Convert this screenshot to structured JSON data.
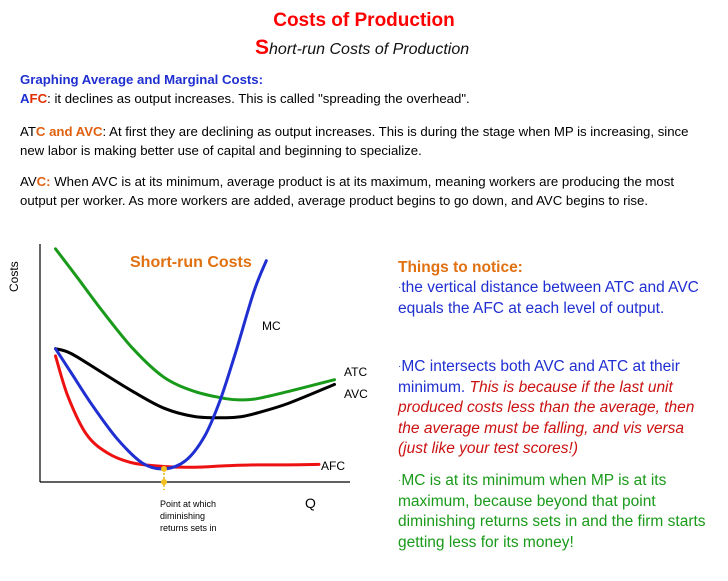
{
  "header": {
    "title": "Costs of Production",
    "subtitle_initial": "S",
    "subtitle_rest": "hort-run Costs of Production"
  },
  "intro": {
    "heading": "Graphing Average and Marginal Costs:",
    "afc_prefix_a": "A",
    "afc_prefix_fc": "FC",
    "afc_text": ": it declines as output increases. This is called \"spreading the overhead\".",
    "atc_avc_prefix_at": "AT",
    "atc_avc_prefix_rest": "C and AVC",
    "atc_avc_text": ": At first they are declining as output increases. This is during the stage when MP is increasing, since new labor is making better use of capital and beginning to specialize.",
    "avc_prefix_av": "AV",
    "avc_prefix_c": "C:",
    "avc_text": "  When AVC is at its minimum, average product is at its maximum, meaning workers are producing the most output per worker. As more workers are added, average product begins to go down, and AVC begins to rise."
  },
  "chart_data": {
    "type": "line",
    "title": "Short-run Costs",
    "xlabel": "Q",
    "ylabel": "Costs",
    "x_range": [
      0,
      10
    ],
    "y_range": [
      0,
      10
    ],
    "series": [
      {
        "name": "ATC",
        "color": "#1a9a1a",
        "x": [
          0.5,
          1.2,
          2,
          3,
          4,
          5,
          6,
          6.5,
          7,
          8,
          9.5
        ],
        "y": [
          9.8,
          8.6,
          7.2,
          5.6,
          4.4,
          3.8,
          3.5,
          3.45,
          3.5,
          3.8,
          4.3
        ]
      },
      {
        "name": "AVC",
        "color": "#000000",
        "x": [
          0.5,
          1,
          2,
          3,
          4,
          5,
          6,
          6.5,
          7,
          8,
          9.5
        ],
        "y": [
          5.6,
          5.4,
          4.6,
          3.8,
          3.1,
          2.75,
          2.7,
          2.75,
          2.9,
          3.3,
          4.1
        ]
      },
      {
        "name": "MC",
        "color": "#1f2fd1",
        "x": [
          0.5,
          1,
          1.7,
          2.5,
          3.3,
          4,
          4.7,
          5.3,
          5.8,
          6.3,
          6.9,
          7.3
        ],
        "y": [
          5.6,
          4.6,
          3.2,
          1.8,
          0.8,
          0.55,
          0.9,
          1.9,
          3.4,
          5.4,
          8.0,
          9.3
        ]
      },
      {
        "name": "AFC",
        "color": "#ee1111",
        "x": [
          0.5,
          0.9,
          1.5,
          2.2,
          3,
          4,
          5,
          6,
          7,
          8,
          9
        ],
        "y": [
          5.3,
          3.6,
          2.0,
          1.2,
          0.8,
          0.65,
          0.62,
          0.68,
          0.72,
          0.72,
          0.74
        ]
      }
    ],
    "labels": {
      "MC": "MC",
      "ATC": "ATC",
      "AVC": "AVC",
      "AFC": "AFC"
    },
    "annotation": "Point at which diminishing returns sets in",
    "annotation_lines": [
      "Point at which",
      "diminishing",
      "returns sets in"
    ],
    "annotation_x": 4.0
  },
  "notes": {
    "title": "Things to notice:",
    "bullet": "·",
    "n1": "the vertical distance between ATC and AVC equals the AFC at each level of output.",
    "n2_plain": "MC intersects both AVC and ATC at their minimum. ",
    "n2_italic": "This is because if the last unit produced costs less than the average, then the average must be falling, and vis versa (just like your test scores!)",
    "n3": "MC is at its minimum when MP is at its maximum, because beyond that point diminishing returns sets in and the firm starts getting less for its money!"
  },
  "colors": {
    "title_red": "#ff0000",
    "heading_blue": "#1f2fd1",
    "notes_orange": "#e07010",
    "notes_green": "#1a9a1a"
  }
}
